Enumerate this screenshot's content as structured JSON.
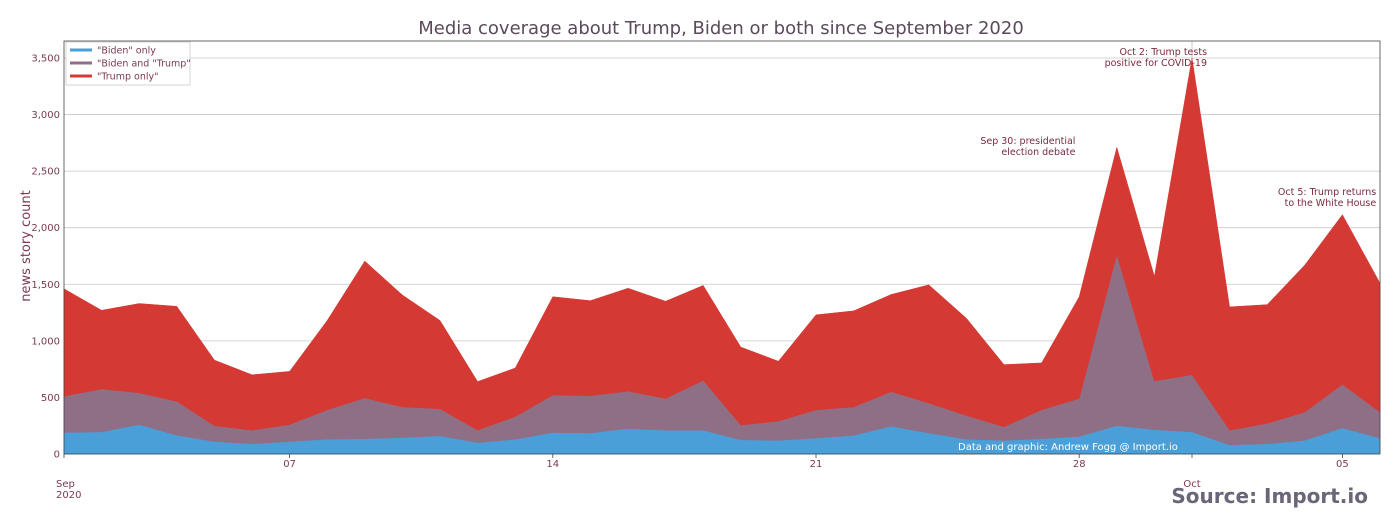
{
  "chart_data": {
    "type": "area",
    "stacked": true,
    "title": "Media coverage about Trump, Biden or both since September 2020",
    "ylabel": "news story count",
    "xlabel": "",
    "ylim": [
      0,
      3650
    ],
    "x_start_date": "2020-09-01",
    "y_ticks": [
      {
        "value": 0,
        "label": "0"
      },
      {
        "value": 500,
        "label": "500"
      },
      {
        "value": 1000,
        "label": "1,000"
      },
      {
        "value": 1500,
        "label": "1,500"
      },
      {
        "value": 2000,
        "label": "2,000"
      },
      {
        "value": 2500,
        "label": "2,500"
      },
      {
        "value": 3000,
        "label": "3,000"
      },
      {
        "value": 3500,
        "label": "3,500"
      }
    ],
    "x_ticks": [
      {
        "date": "2020-09-01",
        "label": "Sep",
        "sublabel": "2020"
      },
      {
        "date": "2020-09-07",
        "label": "07"
      },
      {
        "date": "2020-09-14",
        "label": "14"
      },
      {
        "date": "2020-09-21",
        "label": "21"
      },
      {
        "date": "2020-09-28",
        "label": "28"
      },
      {
        "date": "2020-10-01",
        "label": "Oct"
      },
      {
        "date": "2020-10-05",
        "label": "05"
      }
    ],
    "grid": true,
    "legend_position": "top-left",
    "series": [
      {
        "name": "\"Biden\" only",
        "color": "#4a9fd8",
        "values": [
          190,
          195,
          260,
          165,
          110,
          90,
          110,
          130,
          135,
          145,
          160,
          100,
          130,
          190,
          185,
          225,
          210,
          210,
          125,
          120,
          140,
          165,
          245,
          185,
          130,
          120,
          135,
          155,
          250,
          215,
          195,
          80,
          90,
          120,
          230,
          140
        ]
      },
      {
        "name": "\"Biden and \"Trump\"",
        "color": "#8f6f86",
        "values": [
          320,
          380,
          280,
          300,
          140,
          120,
          150,
          260,
          360,
          270,
          240,
          110,
          200,
          330,
          330,
          330,
          280,
          440,
          130,
          170,
          250,
          250,
          305,
          265,
          210,
          120,
          255,
          335,
          1510,
          430,
          505,
          130,
          180,
          250,
          385,
          230
        ]
      },
      {
        "name": "\"Trump only\"",
        "color": "#d43a33",
        "values": [
          950,
          695,
          790,
          840,
          580,
          490,
          470,
          790,
          1210,
          990,
          780,
          430,
          430,
          870,
          840,
          910,
          860,
          840,
          690,
          530,
          840,
          850,
          860,
          1045,
          860,
          550,
          415,
          900,
          950,
          925,
          2800,
          1090,
          1050,
          1300,
          1500,
          1140
        ]
      }
    ],
    "annotations": [
      {
        "date": "2020-09-29",
        "lines": [
          "Sep 30: presidential",
          "election debate"
        ]
      },
      {
        "date": "2020-10-02",
        "lines": [
          "Oct 2: Trump tests",
          "positive for COVID-19"
        ]
      },
      {
        "date": "2020-10-05",
        "lines": [
          "Oct 5: Trump returns",
          "to the White House"
        ]
      }
    ],
    "credit": "Data and graphic: Andrew Fogg @ Import.io",
    "source": "Source: Import.io"
  }
}
